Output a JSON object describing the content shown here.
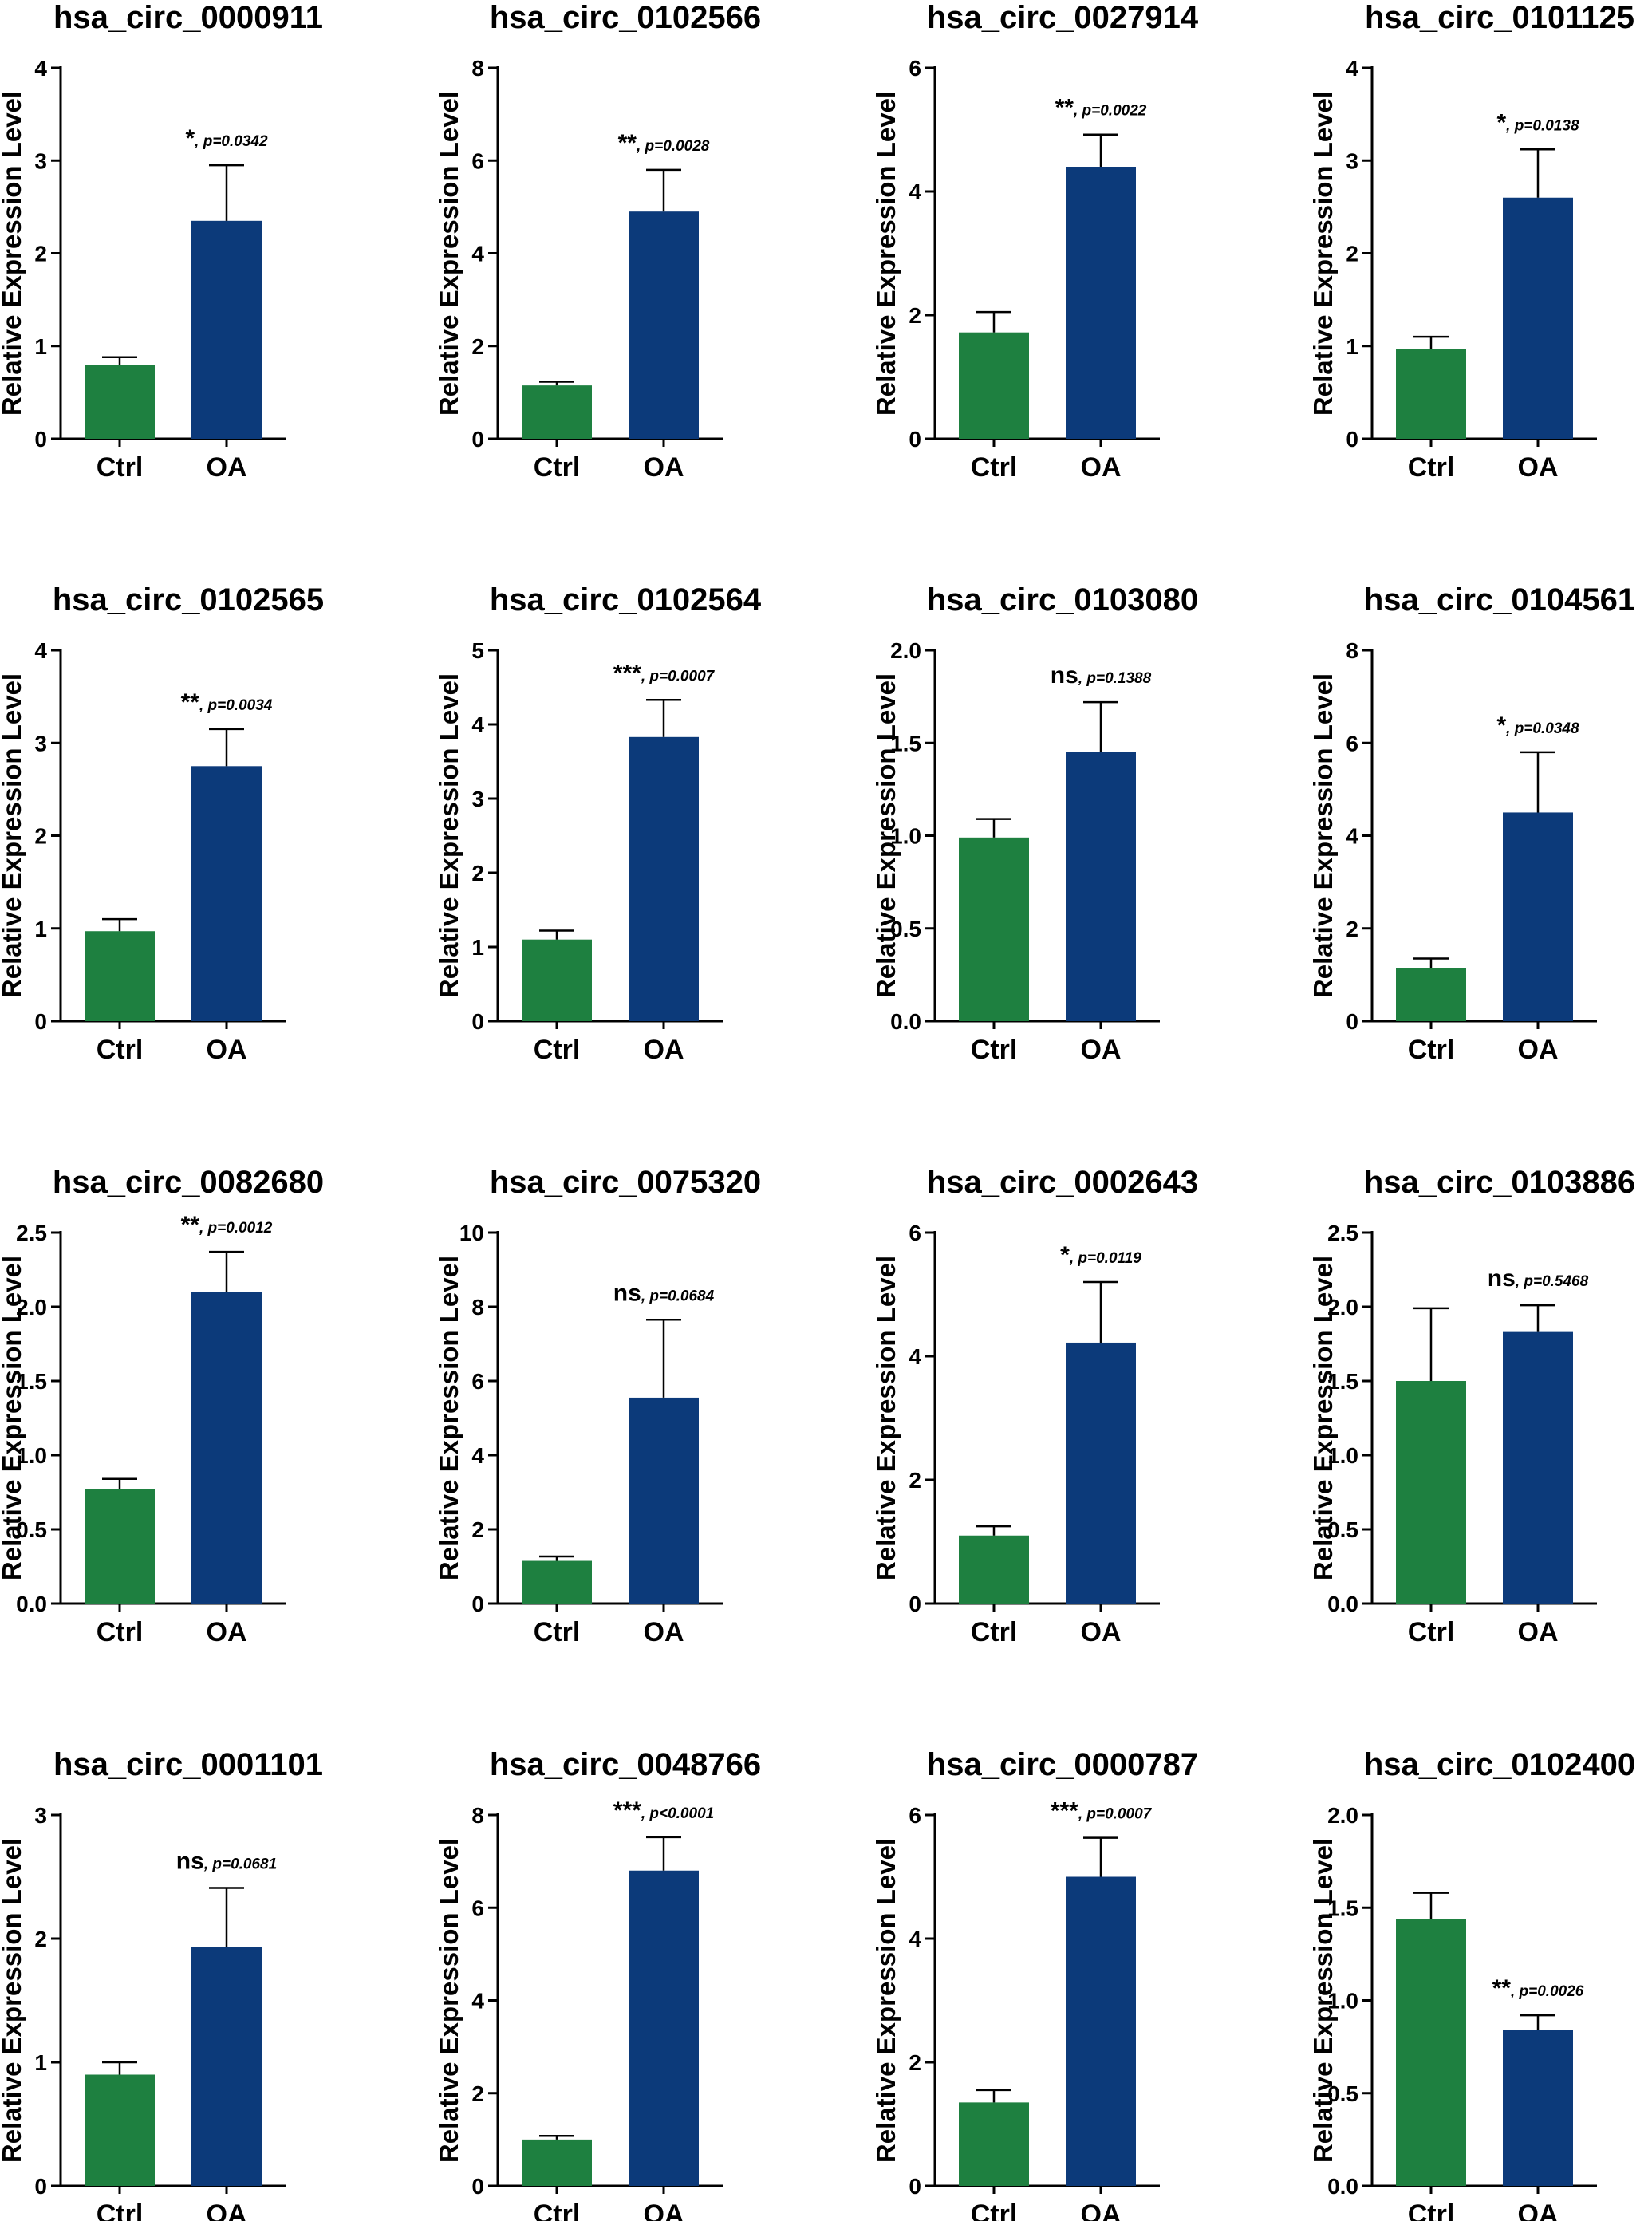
{
  "colors": {
    "ctrl": "#1e8040",
    "oa": "#0c3a7a"
  },
  "chart_data": [
    {
      "type": "bar",
      "title": "hsa_circ_0000911",
      "ylabel": "Relative Expression Level",
      "categories": [
        "Ctrl",
        "OA"
      ],
      "values": [
        0.8,
        2.35
      ],
      "errors": [
        0.08,
        0.6
      ],
      "ylim": [
        0,
        4
      ],
      "yticks": [
        "0",
        "1",
        "2",
        "3",
        "4"
      ],
      "significance": "*",
      "p_text": ", p=0.0342"
    },
    {
      "type": "bar",
      "title": "hsa_circ_0102566",
      "ylabel": "Relative Expression Level",
      "categories": [
        "Ctrl",
        "OA"
      ],
      "values": [
        1.15,
        4.9
      ],
      "errors": [
        0.08,
        0.9
      ],
      "ylim": [
        0,
        8
      ],
      "yticks": [
        "0",
        "2",
        "4",
        "6",
        "8"
      ],
      "significance": "**",
      "p_text": ", p=0.0028"
    },
    {
      "type": "bar",
      "title": "hsa_circ_0027914",
      "ylabel": "Relative Expression Level",
      "categories": [
        "Ctrl",
        "OA"
      ],
      "values": [
        1.72,
        4.4
      ],
      "errors": [
        0.33,
        0.52
      ],
      "ylim": [
        0,
        6
      ],
      "yticks": [
        "0",
        "2",
        "4",
        "6"
      ],
      "significance": "**",
      "p_text": ", p=0.0022"
    },
    {
      "type": "bar",
      "title": "hsa_circ_0101125",
      "ylabel": "Relative Expression Level",
      "categories": [
        "Ctrl",
        "OA"
      ],
      "values": [
        0.97,
        2.6
      ],
      "errors": [
        0.13,
        0.52
      ],
      "ylim": [
        0,
        4
      ],
      "yticks": [
        "0",
        "1",
        "2",
        "3",
        "4"
      ],
      "significance": "*",
      "p_text": ", p=0.0138"
    },
    {
      "type": "bar",
      "title": "hsa_circ_0102565",
      "ylabel": "Relative Expression Level",
      "categories": [
        "Ctrl",
        "OA"
      ],
      "values": [
        0.97,
        2.75
      ],
      "errors": [
        0.13,
        0.4
      ],
      "ylim": [
        0,
        4
      ],
      "yticks": [
        "0",
        "1",
        "2",
        "3",
        "4"
      ],
      "significance": "**",
      "p_text": ", p=0.0034"
    },
    {
      "type": "bar",
      "title": "hsa_circ_0102564",
      "ylabel": "Relative Expression Level",
      "categories": [
        "Ctrl",
        "OA"
      ],
      "values": [
        1.1,
        3.83
      ],
      "errors": [
        0.12,
        0.5
      ],
      "ylim": [
        0,
        5
      ],
      "yticks": [
        "0",
        "1",
        "2",
        "3",
        "4",
        "5"
      ],
      "significance": "***",
      "p_text": ", p=0.0007"
    },
    {
      "type": "bar",
      "title": "hsa_circ_0103080",
      "ylabel": "Relative Expression Level",
      "categories": [
        "Ctrl",
        "OA"
      ],
      "values": [
        0.99,
        1.45
      ],
      "errors": [
        0.1,
        0.27
      ],
      "ylim": [
        0,
        2
      ],
      "yticks": [
        "0.0",
        "0.5",
        "1.0",
        "1.5",
        "2.0"
      ],
      "significance": "ns",
      "p_text": ", p=0.1388"
    },
    {
      "type": "bar",
      "title": "hsa_circ_0104561",
      "ylabel": "Relative Expression Level",
      "categories": [
        "Ctrl",
        "OA"
      ],
      "values": [
        1.15,
        4.5
      ],
      "errors": [
        0.2,
        1.3
      ],
      "ylim": [
        0,
        8
      ],
      "yticks": [
        "0",
        "2",
        "4",
        "6",
        "8"
      ],
      "significance": "*",
      "p_text": ", p=0.0348"
    },
    {
      "type": "bar",
      "title": "hsa_circ_0082680",
      "ylabel": "Relative Expression Level",
      "categories": [
        "Ctrl",
        "OA"
      ],
      "values": [
        0.77,
        2.1
      ],
      "errors": [
        0.07,
        0.27
      ],
      "ylim": [
        0,
        2.5
      ],
      "yticks": [
        "0.0",
        "0.5",
        "1.0",
        "1.5",
        "2.0",
        "2.5"
      ],
      "significance": "**",
      "p_text": ", p=0.0012"
    },
    {
      "type": "bar",
      "title": "hsa_circ_0075320",
      "ylabel": "Relative Expression Level",
      "categories": [
        "Ctrl",
        "OA"
      ],
      "values": [
        1.15,
        5.55
      ],
      "errors": [
        0.12,
        2.1
      ],
      "ylim": [
        0,
        10
      ],
      "yticks": [
        "0",
        "2",
        "4",
        "6",
        "8",
        "10"
      ],
      "significance": "ns",
      "p_text": ", p=0.0684"
    },
    {
      "type": "bar",
      "title": "hsa_circ_0002643",
      "ylabel": "Relative Expression Level",
      "categories": [
        "Ctrl",
        "OA"
      ],
      "values": [
        1.1,
        4.22
      ],
      "errors": [
        0.15,
        0.98
      ],
      "ylim": [
        0,
        6
      ],
      "yticks": [
        "0",
        "2",
        "4",
        "6"
      ],
      "significance": "*",
      "p_text": ", p=0.0119"
    },
    {
      "type": "bar",
      "title": "hsa_circ_0103886",
      "ylabel": "Relative Expression Level",
      "categories": [
        "Ctrl",
        "OA"
      ],
      "values": [
        1.5,
        1.83
      ],
      "errors": [
        0.49,
        0.18
      ],
      "ylim": [
        0,
        2.5
      ],
      "yticks": [
        "0.0",
        "0.5",
        "1.0",
        "1.5",
        "2.0",
        "2.5"
      ],
      "significance": "ns",
      "p_text": ", p=0.5468"
    },
    {
      "type": "bar",
      "title": "hsa_circ_0001101",
      "ylabel": "Relative Expression Level",
      "categories": [
        "Ctrl",
        "OA"
      ],
      "values": [
        0.9,
        1.93
      ],
      "errors": [
        0.1,
        0.48
      ],
      "ylim": [
        0,
        3
      ],
      "yticks": [
        "0",
        "1",
        "2",
        "3"
      ],
      "significance": "ns",
      "p_text": ", p=0.0681"
    },
    {
      "type": "bar",
      "title": "hsa_circ_0048766",
      "ylabel": "Relative Expression Level",
      "categories": [
        "Ctrl",
        "OA"
      ],
      "values": [
        1.0,
        6.8
      ],
      "errors": [
        0.08,
        0.72
      ],
      "ylim": [
        0,
        8
      ],
      "yticks": [
        "0",
        "2",
        "4",
        "6",
        "8"
      ],
      "significance": "***",
      "p_text": ", p<0.0001"
    },
    {
      "type": "bar",
      "title": "hsa_circ_0000787",
      "ylabel": "Relative Expression Level",
      "categories": [
        "Ctrl",
        "OA"
      ],
      "values": [
        1.35,
        5.0
      ],
      "errors": [
        0.2,
        0.63
      ],
      "ylim": [
        0,
        6
      ],
      "yticks": [
        "0",
        "2",
        "4",
        "6"
      ],
      "significance": "***",
      "p_text": ", p=0.0007"
    },
    {
      "type": "bar",
      "title": "hsa_circ_0102400",
      "ylabel": "Relative Expression Level",
      "categories": [
        "Ctrl",
        "OA"
      ],
      "values": [
        1.44,
        0.84
      ],
      "errors": [
        0.14,
        0.08
      ],
      "ylim": [
        0,
        2
      ],
      "yticks": [
        "0.0",
        "0.5",
        "1.0",
        "1.5",
        "2.0"
      ],
      "significance": "**",
      "p_text": ", p=0.0026"
    }
  ]
}
